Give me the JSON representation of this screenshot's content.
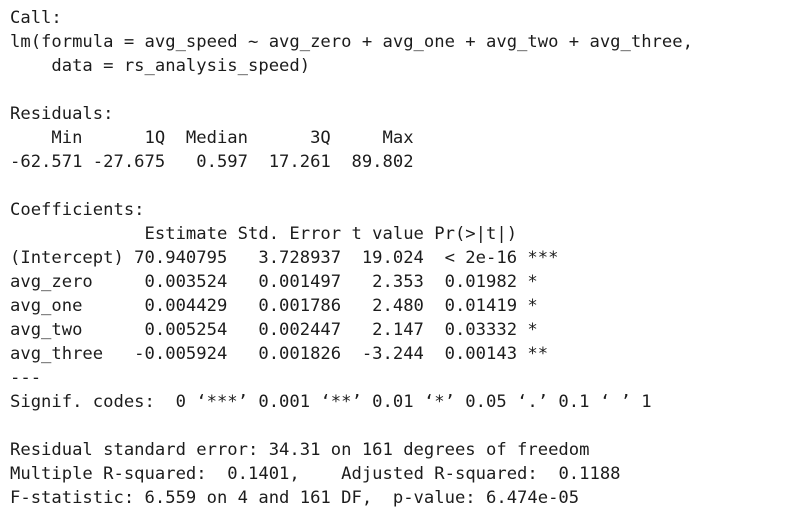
{
  "lines": [
    "Call:",
    "lm(formula = avg_speed ~ avg_zero + avg_one + avg_two + avg_three,",
    "    data = rs_analysis_speed)",
    "",
    "Residuals:",
    "    Min      1Q  Median      3Q     Max ",
    "-62.571 -27.675   0.597  17.261  89.802 ",
    "",
    "Coefficients:",
    "             Estimate Std. Error t value Pr(>|t|)    ",
    "(Intercept) 70.940795   3.728937  19.024  < 2e-16 ***",
    "avg_zero     0.003524   0.001497   2.353  0.01982 *  ",
    "avg_one      0.004429   0.001786   2.480  0.01419 *  ",
    "avg_two      0.005254   0.002447   2.147  0.03332 *  ",
    "avg_three   -0.005924   0.001826  -3.244  0.00143 ** ",
    "---",
    "Signif. codes:  0 ‘***’ 0.001 ‘**’ 0.01 ‘*’ 0.05 ‘.’ 0.1 ‘ ’ 1",
    "",
    "Residual standard error: 34.31 on 161 degrees of freedom",
    "Multiple R-squared:  0.1401,\tAdjusted R-squared:  0.1188 ",
    "F-statistic: 6.559 on 4 and 161 DF,  p-value: 6.474e-05"
  ]
}
